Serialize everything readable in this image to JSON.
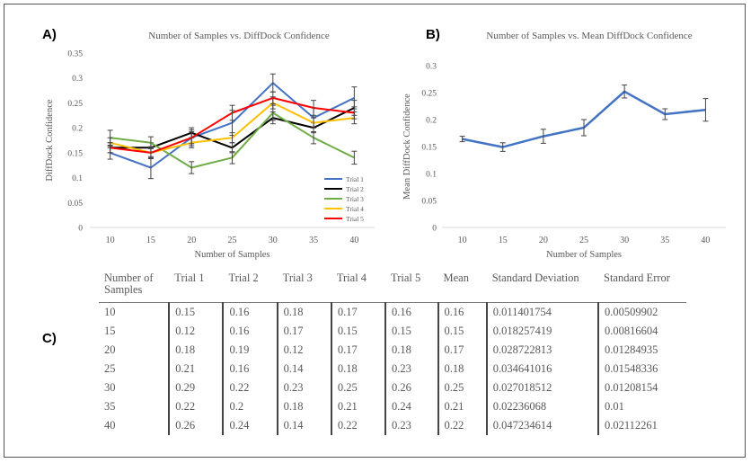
{
  "panels": {
    "a": "A)",
    "b": "B)",
    "c": "C)"
  },
  "chart_data": [
    {
      "type": "line",
      "title": "Number of Samples vs. DiffDock Confidence",
      "xlabel": "Number of Samples",
      "ylabel": "DiffDock Confidence",
      "categories": [
        "10",
        "15",
        "20",
        "25",
        "30",
        "35",
        "40"
      ],
      "ylim": [
        0,
        0.35
      ],
      "yticks": [
        "0",
        "0.05",
        "0.1",
        "0.15",
        "0.2",
        "0.25",
        "0.3",
        "0.35"
      ],
      "grid": false,
      "legend": "bottom-right",
      "series": [
        {
          "name": "Trial 1",
          "color": "#4472C4",
          "values": [
            0.15,
            0.12,
            0.18,
            0.21,
            0.29,
            0.22,
            0.26
          ],
          "errors": [
            0.013,
            0.022,
            0.016,
            0.025,
            0.018,
            0.02,
            0.022
          ]
        },
        {
          "name": "Trial 2",
          "color": "#000000",
          "values": [
            0.16,
            0.16,
            0.19,
            0.16,
            0.22,
            0.2,
            0.24
          ],
          "errors": [
            0.01,
            0.01,
            0.01,
            0.01,
            0.012,
            0.01,
            0.015
          ]
        },
        {
          "name": "Trial 3",
          "color": "#70AD47",
          "values": [
            0.18,
            0.17,
            0.12,
            0.14,
            0.23,
            0.18,
            0.14
          ],
          "errors": [
            0.015,
            0.012,
            0.012,
            0.012,
            0.015,
            0.012,
            0.013
          ]
        },
        {
          "name": "Trial 4",
          "color": "#FFC000",
          "values": [
            0.17,
            0.15,
            0.17,
            0.18,
            0.25,
            0.21,
            0.22
          ],
          "errors": [
            0.01,
            0.01,
            0.01,
            0.01,
            0.012,
            0.01,
            0.012
          ]
        },
        {
          "name": "Trial 5",
          "color": "#FF0000",
          "values": [
            0.16,
            0.15,
            0.18,
            0.23,
            0.26,
            0.24,
            0.23
          ],
          "errors": [
            0.01,
            0.012,
            0.012,
            0.015,
            0.012,
            0.015,
            0.012
          ]
        }
      ]
    },
    {
      "type": "line",
      "title": "Number of Samples vs. Mean DiffDock Confidence",
      "xlabel": "Number of Samples",
      "ylabel": "Mean DiffDock Confidence",
      "categories": [
        "10",
        "15",
        "20",
        "25",
        "30",
        "35",
        "40"
      ],
      "ylim": [
        0,
        0.3
      ],
      "yticks": [
        "0",
        "0.05",
        "0.1",
        "0.15",
        "0.2",
        "0.25",
        "0.3"
      ],
      "grid": false,
      "series": [
        {
          "name": "Mean",
          "color": "#4472C4",
          "values": [
            0.164,
            0.149,
            0.169,
            0.185,
            0.252,
            0.21,
            0.218
          ],
          "errors": [
            0.005,
            0.008,
            0.013,
            0.015,
            0.012,
            0.01,
            0.021
          ]
        }
      ]
    },
    {
      "type": "table",
      "columns": [
        "Number of Samples",
        "Trial 1",
        "Trial 2",
        "Trial 3",
        "Trial 4",
        "Trial 5",
        "Mean",
        "Standard Deviation",
        "Standard Error"
      ],
      "rows": [
        [
          "10",
          "0.15",
          "0.16",
          "0.18",
          "0.17",
          "0.16",
          "0.16",
          "0.011401754",
          "0.00509902"
        ],
        [
          "15",
          "0.12",
          "0.16",
          "0.17",
          "0.15",
          "0.15",
          "0.15",
          "0.018257419",
          "0.00816604"
        ],
        [
          "20",
          "0.18",
          "0.19",
          "0.12",
          "0.17",
          "0.18",
          "0.17",
          "0.028722813",
          "0.01284935"
        ],
        [
          "25",
          "0.21",
          "0.16",
          "0.14",
          "0.18",
          "0.23",
          "0.18",
          "0.034641016",
          "0.01548336"
        ],
        [
          "30",
          "0.29",
          "0.22",
          "0.23",
          "0.25",
          "0.26",
          "0.25",
          "0.027018512",
          "0.01208154"
        ],
        [
          "35",
          "0.22",
          "0.2",
          "0.18",
          "0.21",
          "0.24",
          "0.21",
          "0.02236068",
          "0.01"
        ],
        [
          "40",
          "0.26",
          "0.24",
          "0.14",
          "0.22",
          "0.23",
          "0.22",
          "0.047234614",
          "0.02112261"
        ]
      ]
    }
  ]
}
